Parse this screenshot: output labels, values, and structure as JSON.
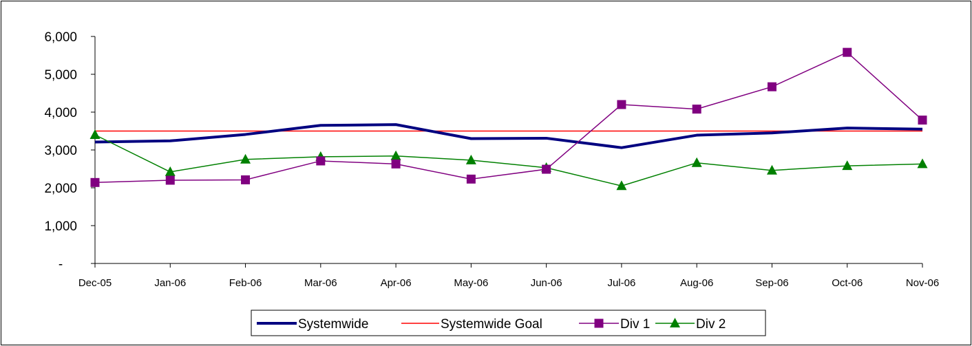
{
  "chart_data": {
    "type": "line",
    "categories": [
      "Dec-05",
      "Jan-06",
      "Feb-06",
      "Mar-06",
      "Apr-06",
      "May-06",
      "Jun-06",
      "Jul-06",
      "Aug-06",
      "Sep-06",
      "Oct-06",
      "Nov-06"
    ],
    "ylim": [
      0,
      6000
    ],
    "yticks": [
      0,
      1000,
      2000,
      3000,
      4000,
      5000,
      6000
    ],
    "ytick_labels": [
      "-",
      "1,000",
      "2,000",
      "3,000",
      "4,000",
      "5,000",
      "6,000"
    ],
    "grid": false,
    "legend_position": "bottom",
    "series": [
      {
        "name": "Systemwide",
        "color": "#000080",
        "marker": "none",
        "line_width": 4,
        "values": [
          3210,
          3240,
          3410,
          3650,
          3670,
          3300,
          3310,
          3060,
          3390,
          3450,
          3580,
          3550
        ]
      },
      {
        "name": "Systemwide Goal",
        "color": "#ff0000",
        "marker": "none",
        "line_width": 1.5,
        "values": [
          3500,
          3500,
          3500,
          3500,
          3500,
          3500,
          3500,
          3500,
          3500,
          3500,
          3500,
          3500
        ]
      },
      {
        "name": "Div 1",
        "color": "#800080",
        "marker": "square",
        "line_width": 1.5,
        "values": [
          2140,
          2200,
          2210,
          2710,
          2630,
          2230,
          2490,
          4200,
          4080,
          4670,
          5580,
          3790
        ]
      },
      {
        "name": "Div 2",
        "color": "#008000",
        "marker": "triangle",
        "line_width": 1.5,
        "values": [
          3400,
          2420,
          2750,
          2820,
          2840,
          2730,
          2530,
          2050,
          2660,
          2460,
          2580,
          2630
        ]
      }
    ]
  }
}
